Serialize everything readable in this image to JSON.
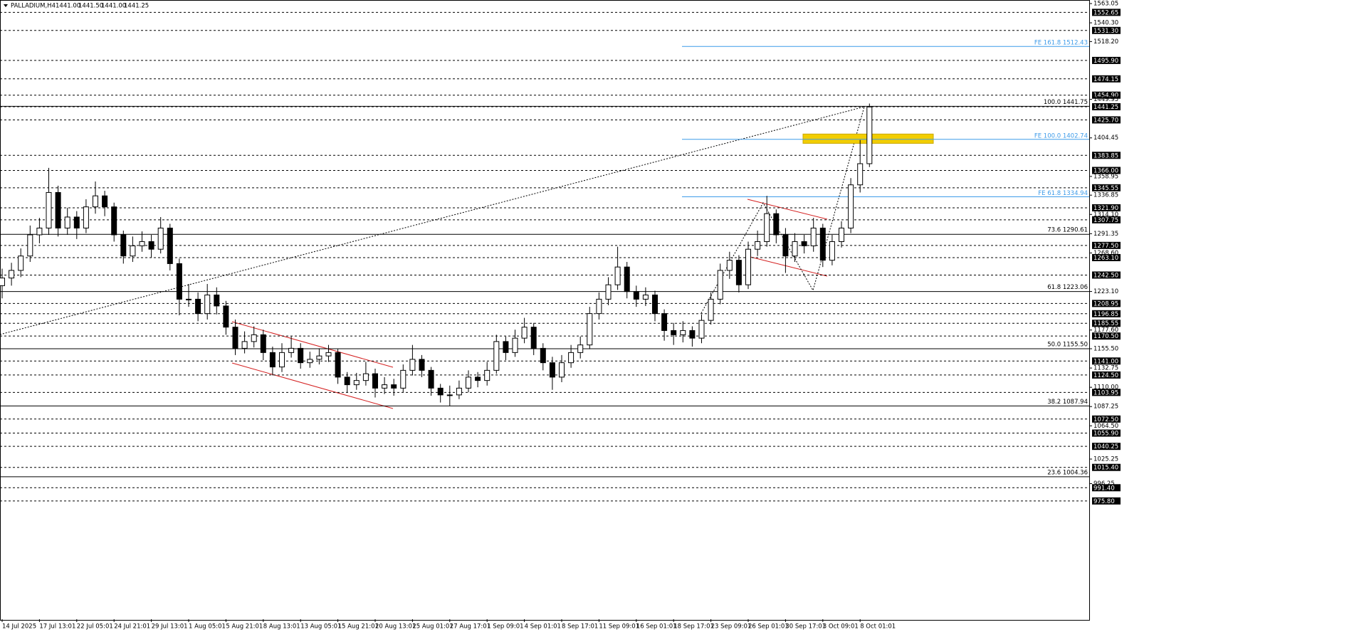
{
  "chart_data": {
    "type": "candlestick",
    "symbol": "PALLADIUM,H4",
    "ohlc_header": [
      "1441.00",
      "1441.50",
      "1441.00",
      "1441.25"
    ],
    "categories": [
      "14 Jul 2025",
      null,
      null,
      null,
      "17 Jul 13:01",
      null,
      null,
      null,
      "22 Jul 05:01",
      null,
      null,
      null,
      "24 Jul 21:01",
      null,
      null,
      null,
      "29 Jul 13:01",
      null,
      null,
      null,
      "1 Aug 05:01",
      null,
      null,
      null,
      "5 Aug 21:01",
      null,
      null,
      null,
      "8 Aug 13:01",
      null,
      null,
      null,
      "13 Aug 05:01",
      null,
      null,
      null,
      "15 Aug 21:01",
      null,
      null,
      null,
      "20 Aug 13:01",
      null,
      null,
      null,
      "25 Aug 01:01",
      null,
      null,
      null,
      "27 Aug 17:01",
      null,
      null,
      null,
      "1 Sep 09:01",
      null,
      null,
      null,
      "4 Sep 01:01",
      null,
      null,
      null,
      "8 Sep 17:01",
      null,
      null,
      null,
      "11 Sep 09:01",
      null,
      null,
      null,
      "16 Sep 01:01",
      null,
      null,
      null,
      "18 Sep 17:01",
      null,
      null,
      null,
      "23 Sep 09:01",
      null,
      null,
      null,
      "26 Sep 01:01",
      null,
      null,
      null,
      "30 Sep 17:01",
      null,
      null,
      null,
      "3 Oct 09:01",
      null,
      null,
      null,
      "8 Oct 01:01",
      null
    ],
    "open": [
      1230,
      1239,
      1248,
      1265,
      1290,
      1298,
      1340,
      1298,
      1311,
      1298,
      1323,
      1336,
      1323,
      1290,
      1265,
      1277,
      1282,
      1273,
      1298,
      1256,
      1214,
      1214,
      1197,
      1219,
      1206,
      1181,
      1156,
      1164,
      1172,
      1151,
      1134,
      1151,
      1156,
      1139,
      1143,
      1147,
      1151,
      1122,
      1113,
      1118,
      1126,
      1109,
      1113,
      1109,
      1130,
      1143,
      1130,
      1109,
      1101,
      1101,
      1109,
      1122,
      1118,
      1130,
      1164,
      1151,
      1168,
      1181,
      1156,
      1139,
      1122,
      1139,
      1151,
      1160,
      1197,
      1214,
      1231,
      1252,
      1223,
      1214,
      1219,
      1197,
      1177,
      1172,
      1177,
      1168,
      1189,
      1214,
      1248,
      1260,
      1231,
      1273,
      1282,
      1315,
      1290,
      1265,
      1282,
      1277,
      1298,
      1260,
      1282,
      1298,
      1349,
      1374
    ],
    "high": [
      1250,
      1257,
      1274,
      1301,
      1310,
      1369,
      1348,
      1322,
      1318,
      1332,
      1353,
      1342,
      1328,
      1295,
      1288,
      1294,
      1290,
      1311,
      1303,
      1262,
      1232,
      1222,
      1232,
      1228,
      1212,
      1190,
      1176,
      1182,
      1178,
      1158,
      1162,
      1170,
      1162,
      1152,
      1156,
      1160,
      1155,
      1128,
      1127,
      1140,
      1132,
      1122,
      1120,
      1137,
      1160,
      1148,
      1134,
      1114,
      1112,
      1118,
      1130,
      1128,
      1140,
      1172,
      1170,
      1178,
      1192,
      1186,
      1162,
      1146,
      1148,
      1160,
      1170,
      1205,
      1222,
      1240,
      1276,
      1258,
      1230,
      1228,
      1224,
      1202,
      1186,
      1188,
      1182,
      1196,
      1222,
      1256,
      1270,
      1266,
      1282,
      1295,
      1336,
      1320,
      1298,
      1292,
      1290,
      1310,
      1303,
      1290,
      1306,
      1357,
      1402,
      1445
    ],
    "low": [
      1215,
      1230,
      1240,
      1258,
      1280,
      1290,
      1288,
      1290,
      1285,
      1292,
      1315,
      1312,
      1282,
      1256,
      1258,
      1270,
      1263,
      1268,
      1248,
      1195,
      1205,
      1188,
      1190,
      1196,
      1172,
      1148,
      1150,
      1157,
      1142,
      1124,
      1128,
      1145,
      1132,
      1133,
      1137,
      1140,
      1114,
      1104,
      1107,
      1112,
      1098,
      1102,
      1100,
      1104,
      1124,
      1122,
      1100,
      1092,
      1088,
      1096,
      1104,
      1110,
      1112,
      1126,
      1142,
      1146,
      1162,
      1148,
      1130,
      1107,
      1116,
      1133,
      1144,
      1155,
      1190,
      1207,
      1225,
      1215,
      1205,
      1206,
      1188,
      1165,
      1160,
      1163,
      1158,
      1162,
      1184,
      1208,
      1238,
      1222,
      1226,
      1265,
      1276,
      1280,
      1245,
      1258,
      1268,
      1270,
      1252,
      1254,
      1275,
      1292,
      1340,
      1370
    ],
    "close": [
      1239,
      1248,
      1265,
      1290,
      1298,
      1340,
      1298,
      1311,
      1298,
      1323,
      1336,
      1323,
      1290,
      1265,
      1277,
      1282,
      1273,
      1298,
      1256,
      1214,
      1214,
      1197,
      1219,
      1206,
      1181,
      1156,
      1164,
      1172,
      1151,
      1134,
      1151,
      1156,
      1139,
      1143,
      1147,
      1151,
      1122,
      1113,
      1118,
      1126,
      1109,
      1113,
      1109,
      1130,
      1143,
      1130,
      1109,
      1101,
      1101,
      1109,
      1122,
      1118,
      1130,
      1164,
      1151,
      1168,
      1181,
      1156,
      1139,
      1122,
      1139,
      1151,
      1160,
      1197,
      1214,
      1231,
      1252,
      1223,
      1214,
      1219,
      1197,
      1177,
      1172,
      1177,
      1168,
      1189,
      1214,
      1248,
      1260,
      1231,
      1273,
      1282,
      1315,
      1290,
      1265,
      1282,
      1277,
      1298,
      1260,
      1282,
      1298,
      1349,
      1374,
      1441
    ],
    "ylim": [
      836.2,
      1567.25
    ],
    "yticks": [
      {
        "value": 1563.05,
        "label": "1563.05"
      },
      {
        "value": 1540.3,
        "label": "1540.30"
      },
      {
        "value": 1518.2,
        "label": "1518.20"
      },
      {
        "value": 1449.95,
        "label": "1449.95"
      },
      {
        "value": 1404.45,
        "label": "1404.45"
      },
      {
        "value": 1358.95,
        "label": "1358.95"
      },
      {
        "value": 1336.85,
        "label": "1336.85"
      },
      {
        "value": 1314.1,
        "label": "1314.10"
      },
      {
        "value": 1291.35,
        "label": "1291.35"
      },
      {
        "value": 1268.6,
        "label": "1268.60"
      },
      {
        "value": 1223.1,
        "label": "1223.10"
      },
      {
        "value": 1177.6,
        "label": "1177.60"
      },
      {
        "value": 1155.5,
        "label": "1155.50"
      },
      {
        "value": 1132.75,
        "label": "1132.75"
      },
      {
        "value": 1110.0,
        "label": "1110.00"
      },
      {
        "value": 1087.25,
        "label": "1087.25"
      },
      {
        "value": 1064.5,
        "label": "1064.50"
      },
      {
        "value": 1025.25,
        "label": "1025.25"
      },
      {
        "value": 996.25,
        "label": "996.25"
      }
    ],
    "levels": [
      {
        "value": 1552.65,
        "label": "1552.65"
      },
      {
        "value": 1531.3,
        "label": "1531.30"
      },
      {
        "value": 1495.9,
        "label": "1495.90"
      },
      {
        "value": 1474.15,
        "label": "1474.15"
      },
      {
        "value": 1454.9,
        "label": "1454.90"
      },
      {
        "value": 1441.25,
        "label": "1441.25"
      },
      {
        "value": 1425.7,
        "label": "1425.70"
      },
      {
        "value": 1383.85,
        "label": "1383.85"
      },
      {
        "value": 1366.0,
        "label": "1366.00"
      },
      {
        "value": 1345.55,
        "label": "1345.55"
      },
      {
        "value": 1321.9,
        "label": "1321.90"
      },
      {
        "value": 1307.75,
        "label": "1307.75"
      },
      {
        "value": 1277.5,
        "label": "1277.50"
      },
      {
        "value": 1263.1,
        "label": "1263.10"
      },
      {
        "value": 1242.5,
        "label": "1242.50"
      },
      {
        "value": 1208.95,
        "label": "1208.95"
      },
      {
        "value": 1196.85,
        "label": "1196.85"
      },
      {
        "value": 1185.55,
        "label": "1185.55"
      },
      {
        "value": 1170.5,
        "label": "1170.50"
      },
      {
        "value": 1141.0,
        "label": "1141.00"
      },
      {
        "value": 1124.5,
        "label": "1124.50"
      },
      {
        "value": 1103.95,
        "label": "1103.95"
      },
      {
        "value": 1072.5,
        "label": "1072.50"
      },
      {
        "value": 1055.9,
        "label": "1055.90"
      },
      {
        "value": 1040.25,
        "label": "1040.25"
      },
      {
        "value": 1015.4,
        "label": "1015.40"
      },
      {
        "value": 991.4,
        "label": "991.40"
      },
      {
        "value": 975.8,
        "label": "975.80"
      }
    ],
    "fib_levels": [
      {
        "value": 1441.75,
        "label": "100.0 1441.75"
      },
      {
        "value": 1290.61,
        "label": "73.6 1290.61"
      },
      {
        "value": 1223.06,
        "label": "61.8 1223.06"
      },
      {
        "value": 1155.5,
        "label": "50.0 1155.50"
      },
      {
        "value": 1087.94,
        "label": "38.2 1087.94"
      },
      {
        "value": 1004.36,
        "label": "23.6 1004.36"
      }
    ],
    "fe_levels": [
      {
        "value": 1512.43,
        "label": "FE 161.8 1512.43"
      },
      {
        "value": 1402.74,
        "label": "FE 100.0 1402.74"
      },
      {
        "value": 1334.94,
        "label": "FE 61.8 1334.94"
      }
    ],
    "fe_color": "#3d9be9",
    "zone": [
      1398,
      1409
    ],
    "zone_color": "#f2cd00",
    "channel_color": "#d42020"
  }
}
